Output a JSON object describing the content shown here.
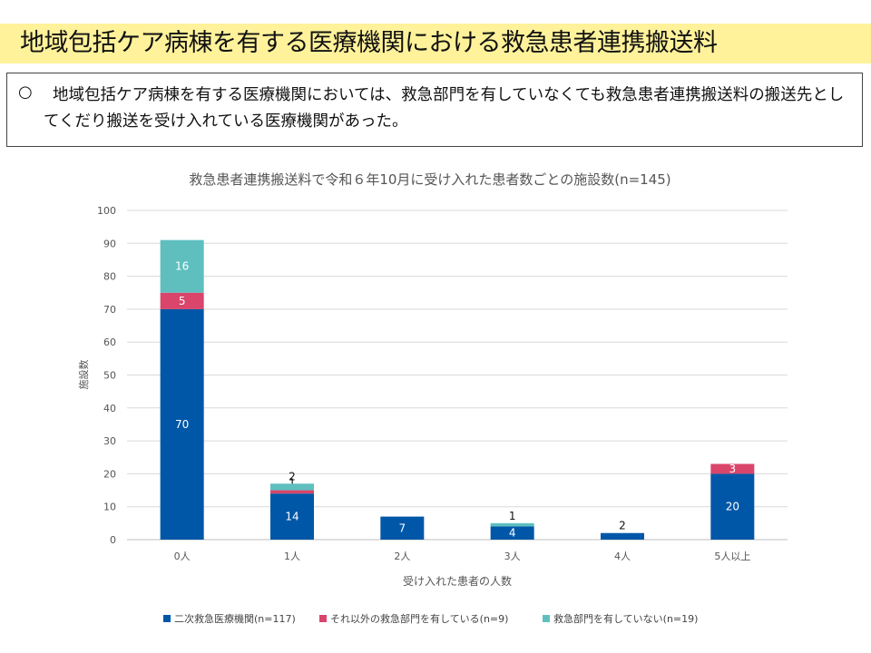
{
  "header": {
    "title": "地域包括ケア病棟を有する医療機関における救急患者連携搬送料"
  },
  "summary": {
    "bullet": "○",
    "text": "地域包括ケア病棟を有する医療機関においては、救急部門を有していなくても救急患者連携搬送料の搬送先としてくだり搬送を受け入れている医療機関があった。"
  },
  "chart_data": {
    "type": "bar",
    "stacked": true,
    "title": "救急患者連携搬送料で令和６年10月に受け入れた患者数ごとの施設数(n=145)",
    "xlabel": "受け入れた患者の人数",
    "ylabel": "施設数",
    "ylim": [
      0,
      100
    ],
    "yticks": [
      0,
      10,
      20,
      30,
      40,
      50,
      60,
      70,
      80,
      90,
      100
    ],
    "grid": true,
    "legend_position": "bottom",
    "categories": [
      "0人",
      "1人",
      "2人",
      "3人",
      "4人",
      "5人以上"
    ],
    "series": [
      {
        "name": "二次救急医療機関(n=117)",
        "color": "#0057a8",
        "values": [
          70,
          14,
          7,
          4,
          2,
          20
        ]
      },
      {
        "name": "それ以外の救急部門を有している(n=9)",
        "color": "#d9456b",
        "values": [
          5,
          1,
          0,
          0,
          0,
          3
        ]
      },
      {
        "name": "救急部門を有していない(n=19)",
        "color": "#5fbfbf",
        "values": [
          16,
          2,
          0,
          1,
          0,
          0
        ]
      }
    ]
  }
}
